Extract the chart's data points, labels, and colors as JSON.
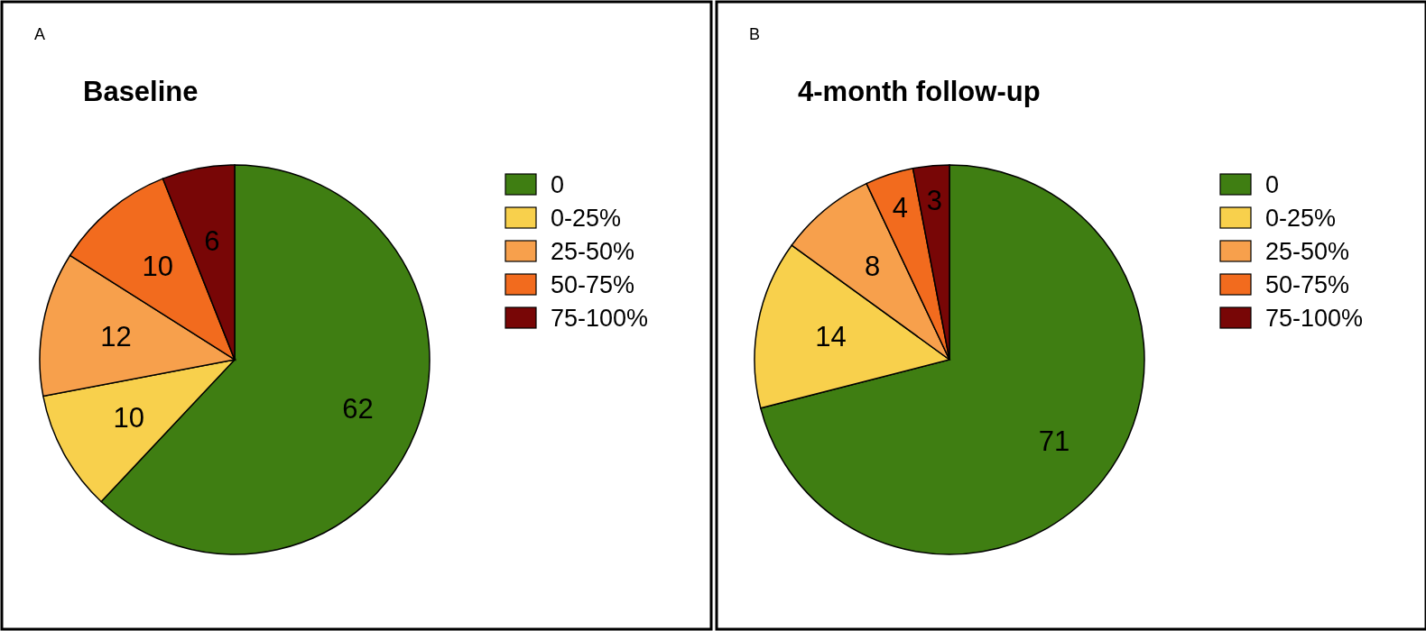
{
  "chart_data": [
    {
      "type": "pie",
      "title": "Baseline",
      "annotations": [
        "A"
      ],
      "categories": [
        "0",
        "0-25%",
        "25-50%",
        "50-75%",
        "75-100%"
      ],
      "values": [
        62,
        10,
        12,
        10,
        6
      ],
      "colors": [
        "#3f7e12",
        "#f8d04c",
        "#f7a04c",
        "#f26b1e",
        "#780606"
      ],
      "data_labels": true,
      "legend": "right"
    },
    {
      "type": "pie",
      "title": "4-month follow-up",
      "annotations": [
        "B"
      ],
      "categories": [
        "0",
        "0-25%",
        "25-50%",
        "50-75%",
        "75-100%"
      ],
      "values": [
        71,
        14,
        8,
        4,
        3
      ],
      "colors": [
        "#3f7e12",
        "#f8d04c",
        "#f7a04c",
        "#f26b1e",
        "#780606"
      ],
      "data_labels": true,
      "legend": "right"
    }
  ]
}
